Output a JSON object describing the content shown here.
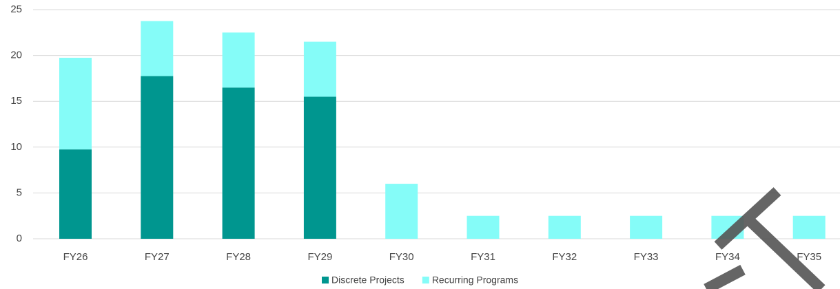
{
  "chart_data": {
    "type": "stacked_bar",
    "categories": [
      "FY26",
      "FY27",
      "FY28",
      "FY29",
      "FY30",
      "FY31",
      "FY32",
      "FY33",
      "FY34",
      "FY35"
    ],
    "series": [
      {
        "name": "Discrete Projects",
        "color": "#00968f",
        "values": [
          9.75,
          17.75,
          16.5,
          15.5,
          0,
          0,
          0,
          0,
          0,
          0
        ]
      },
      {
        "name": "Recurring Programs",
        "color": "#85fcf8",
        "values": [
          10,
          6,
          6,
          6,
          6,
          2.5,
          2.5,
          2.5,
          2.5,
          2.5
        ]
      }
    ],
    "ylim": [
      0,
      25
    ],
    "yticks": [
      0,
      5,
      10,
      15,
      20,
      25
    ],
    "grid": true,
    "legend": "bottom"
  }
}
